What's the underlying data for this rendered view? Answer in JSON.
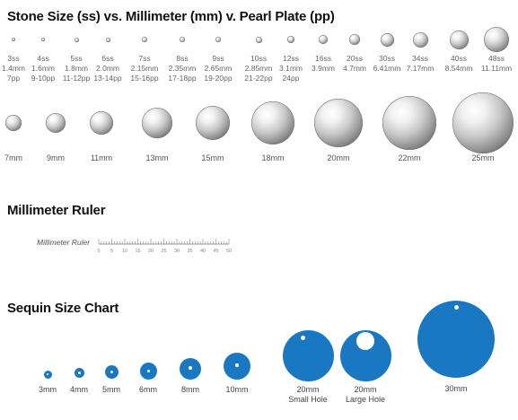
{
  "titles": {
    "stone": "Stone Size (ss) vs. Millimeter (mm) v. Pearl Plate (pp)",
    "ruler": "Millimeter Ruler",
    "sequin": "Sequin Size Chart"
  },
  "stones": [
    {
      "ss": "3ss",
      "mm": "1.4mm",
      "pp": "7pp"
    },
    {
      "ss": "4ss",
      "mm": "1.6mm",
      "pp": "9-10pp"
    },
    {
      "ss": "5ss",
      "mm": "1.8mm",
      "pp": "11-12pp"
    },
    {
      "ss": "6ss",
      "mm": "2.0mm",
      "pp": "13-14pp"
    },
    {
      "ss": "7ss",
      "mm": "2.15mm",
      "pp": "15-16pp"
    },
    {
      "ss": "8ss",
      "mm": "2.35mm",
      "pp": "17-18pp"
    },
    {
      "ss": "9ss",
      "mm": "2.65mm",
      "pp": "19-20pp"
    },
    {
      "ss": "10ss",
      "mm": "2.85mm",
      "pp": "21-22pp"
    },
    {
      "ss": "12ss",
      "mm": "3.1mm",
      "pp": "24pp"
    },
    {
      "ss": "16ss",
      "mm": "3.9mm",
      "pp": ""
    },
    {
      "ss": "20ss",
      "mm": "4.7mm",
      "pp": ""
    },
    {
      "ss": "30ss",
      "mm": "6.41mm",
      "pp": ""
    },
    {
      "ss": "34ss",
      "mm": "7.17mm",
      "pp": ""
    },
    {
      "ss": "40ss",
      "mm": "8.54mm",
      "pp": ""
    },
    {
      "ss": "48ss",
      "mm": "11.11mm",
      "pp": ""
    }
  ],
  "big_stones": [
    "7mm",
    "9mm",
    "11mm",
    "13mm",
    "15mm",
    "18mm",
    "20mm",
    "22mm",
    "25mm"
  ],
  "ruler": {
    "label": "Millimeter Ruler",
    "ticks": [
      "0",
      "5",
      "10",
      "15",
      "20",
      "25",
      "30",
      "35",
      "40",
      "45",
      "50"
    ]
  },
  "sequins": [
    {
      "label": "3mm",
      "sub": ""
    },
    {
      "label": "4mm",
      "sub": ""
    },
    {
      "label": "5mm",
      "sub": ""
    },
    {
      "label": "6mm",
      "sub": ""
    },
    {
      "label": "8mm",
      "sub": ""
    },
    {
      "label": "10mm",
      "sub": ""
    },
    {
      "label": "20mm",
      "sub": "Small Hole"
    },
    {
      "label": "20mm",
      "sub": "Large Hole"
    },
    {
      "label": "30mm",
      "sub": ""
    }
  ],
  "colors": {
    "sequin": "#1a78c2",
    "heading": "#111111"
  }
}
